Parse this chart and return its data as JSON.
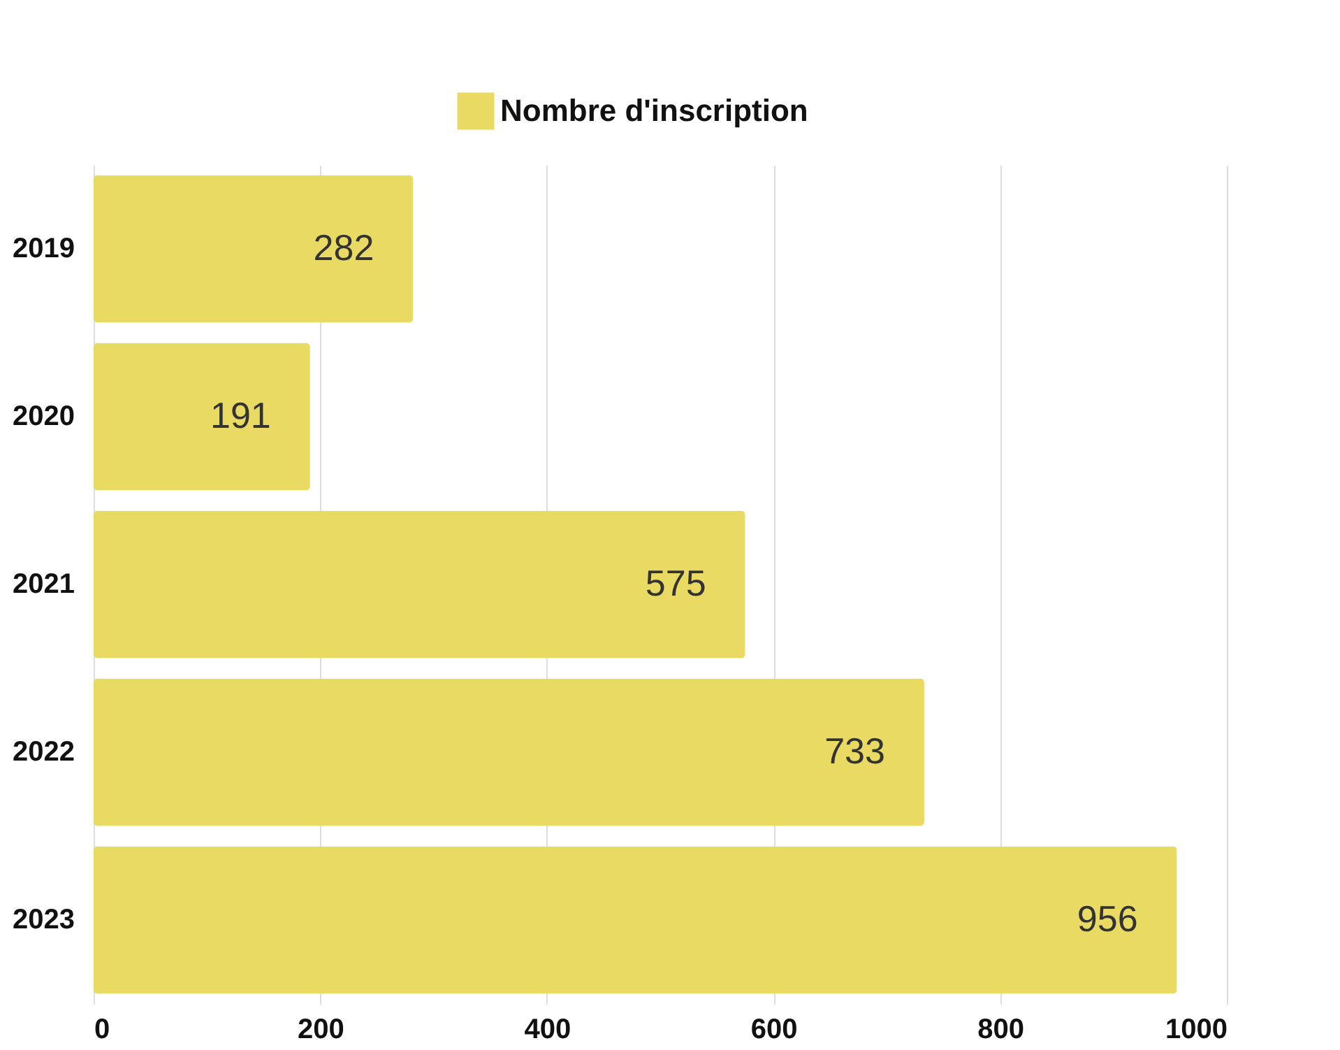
{
  "chart_data": {
    "type": "bar",
    "orientation": "horizontal",
    "categories": [
      "2019",
      "2020",
      "2021",
      "2022",
      "2023"
    ],
    "series": [
      {
        "name": "Nombre d'inscription",
        "color": "#e8da62",
        "values": [
          282,
          191,
          575,
          733,
          956
        ]
      }
    ],
    "xlim": [
      0,
      1000
    ],
    "xticks": [
      0,
      200,
      400,
      600,
      800,
      1000
    ],
    "grid": "x",
    "legend": "top",
    "data_labels": true
  }
}
